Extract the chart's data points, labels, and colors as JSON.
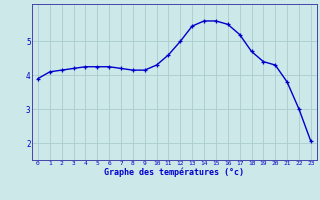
{
  "x": [
    0,
    1,
    2,
    3,
    4,
    5,
    6,
    7,
    8,
    9,
    10,
    11,
    12,
    13,
    14,
    15,
    16,
    17,
    18,
    19,
    20,
    21,
    22,
    23
  ],
  "y": [
    3.9,
    4.1,
    4.15,
    4.2,
    4.25,
    4.25,
    4.25,
    4.2,
    4.15,
    4.15,
    4.3,
    4.6,
    5.0,
    5.45,
    5.6,
    5.6,
    5.5,
    5.2,
    4.7,
    4.4,
    4.3,
    3.8,
    3.0,
    2.05
  ],
  "line_color": "#0000cc",
  "marker": "+",
  "markersize": 3.5,
  "linewidth": 1.0,
  "xlabel": "Graphe des températures (°c)",
  "xlabel_color": "#0000cc",
  "background_color": "#cce8e8",
  "grid_color": "#aacccc",
  "axis_color": "#4444aa",
  "tick_color": "#0000cc",
  "xlim": [
    -0.5,
    23.5
  ],
  "ylim": [
    1.5,
    6.1
  ],
  "yticks": [
    2,
    3,
    4,
    5
  ],
  "xticks": [
    0,
    1,
    2,
    3,
    4,
    5,
    6,
    7,
    8,
    9,
    10,
    11,
    12,
    13,
    14,
    15,
    16,
    17,
    18,
    19,
    20,
    21,
    22,
    23
  ]
}
